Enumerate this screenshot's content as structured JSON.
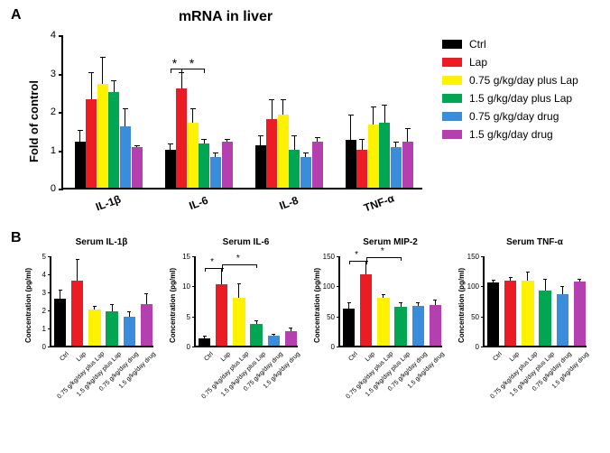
{
  "colors": {
    "ctrl": "#000000",
    "lap": "#ed1c24",
    "plus075": "#fff200",
    "plus15": "#00a651",
    "drug075": "#3a8ddb",
    "drug15": "#b53fae"
  },
  "panelA": {
    "label": "A",
    "title": "mRNA in liver",
    "ylabel": "Fold of control",
    "ylim": [
      0,
      4
    ],
    "yticks": [
      0,
      1,
      2,
      3,
      4
    ],
    "groups": [
      "IL-1β",
      "IL-6",
      "IL-8",
      "TNF-α"
    ],
    "series": [
      {
        "name": "Ctrl",
        "values": [
          1.2,
          1.0,
          1.1,
          1.25
        ],
        "errors": [
          0.3,
          0.15,
          0.25,
          0.65
        ]
      },
      {
        "name": "Lap",
        "values": [
          2.3,
          2.6,
          1.8,
          1.0
        ],
        "errors": [
          0.7,
          0.4,
          0.5,
          0.25
        ]
      },
      {
        "name": "0.75 g/kg/day plus Lap",
        "values": [
          2.7,
          1.7,
          1.9,
          1.65
        ],
        "errors": [
          0.7,
          0.35,
          0.4,
          0.45
        ]
      },
      {
        "name": "1.5 g/kg/day plus Lap",
        "values": [
          2.5,
          1.15,
          1.0,
          1.7
        ],
        "errors": [
          0.3,
          0.1,
          0.35,
          0.45
        ]
      },
      {
        "name": "0.75 g/kg/day drug",
        "values": [
          1.6,
          0.8,
          0.8,
          1.05
        ],
        "errors": [
          0.45,
          0.1,
          0.1,
          0.15
        ]
      },
      {
        "name": "1.5 g/kg/day drug",
        "values": [
          1.05,
          1.2,
          1.2,
          1.2
        ],
        "errors": [
          0.05,
          0.05,
          0.1,
          0.35
        ]
      }
    ],
    "significance": [
      {
        "group": 1,
        "from": 0,
        "to": 1,
        "label": "*"
      },
      {
        "group": 1,
        "from": 1,
        "to": 3,
        "label": "*"
      }
    ]
  },
  "panelB": {
    "label": "B",
    "charts": [
      {
        "title": "Serum IL-1β",
        "ylabel": "Concentration (pg/ml)",
        "ylim": [
          0,
          5
        ],
        "yticks": [
          0,
          1,
          2,
          3,
          4,
          5
        ],
        "values": [
          2.6,
          3.6,
          2.0,
          1.9,
          1.6,
          2.3
        ],
        "errors": [
          0.5,
          1.2,
          0.2,
          0.4,
          0.3,
          0.6
        ],
        "significance": []
      },
      {
        "title": "Serum IL-6",
        "ylabel": "Concentration (pg/ml)",
        "ylim": [
          0,
          15
        ],
        "yticks": [
          0,
          5,
          10,
          15
        ],
        "values": [
          1.2,
          10.2,
          8.0,
          3.6,
          1.6,
          2.4
        ],
        "errors": [
          0.4,
          2.6,
          2.3,
          0.5,
          0.3,
          0.6
        ],
        "significance": [
          {
            "from": 0,
            "to": 1,
            "label": "*"
          },
          {
            "from": 1,
            "to": 3,
            "label": "*"
          }
        ]
      },
      {
        "title": "Serum MIP-2",
        "ylabel": "Concentration (pg/ml)",
        "ylim": [
          0,
          150
        ],
        "yticks": [
          0,
          50,
          100,
          150
        ],
        "values": [
          62,
          118,
          80,
          65,
          66,
          68
        ],
        "errors": [
          10,
          22,
          5,
          6,
          6,
          8
        ],
        "significance": [
          {
            "from": 0,
            "to": 1,
            "label": "*"
          },
          {
            "from": 1,
            "to": 3,
            "label": "*"
          }
        ]
      },
      {
        "title": "Serum TNF-α",
        "ylabel": "Concentration (pg/ml)",
        "ylim": [
          0,
          150
        ],
        "yticks": [
          0,
          50,
          100,
          150
        ],
        "values": [
          105,
          108,
          108,
          92,
          85,
          106
        ],
        "errors": [
          4,
          6,
          14,
          18,
          14,
          4
        ],
        "significance": []
      }
    ],
    "xlabels": [
      "Ctrl",
      "Lap",
      "0.75 g/kg/day plus Lap",
      "1.5 g/kg/day plus Lap",
      "0.75 g/kg/day drug",
      "1.5 g/kg/day drug"
    ]
  },
  "legend": {
    "items": [
      {
        "label": "Ctrl",
        "colorKey": "ctrl"
      },
      {
        "label": "Lap",
        "colorKey": "lap"
      },
      {
        "label": "0.75 g/kg/day plus Lap",
        "colorKey": "plus075"
      },
      {
        "label": "1.5 g/kg/day plus Lap",
        "colorKey": "plus15"
      },
      {
        "label": "0.75 g/kg/day drug",
        "colorKey": "drug075"
      },
      {
        "label": "1.5 g/kg/day drug",
        "colorKey": "drug15"
      }
    ]
  }
}
